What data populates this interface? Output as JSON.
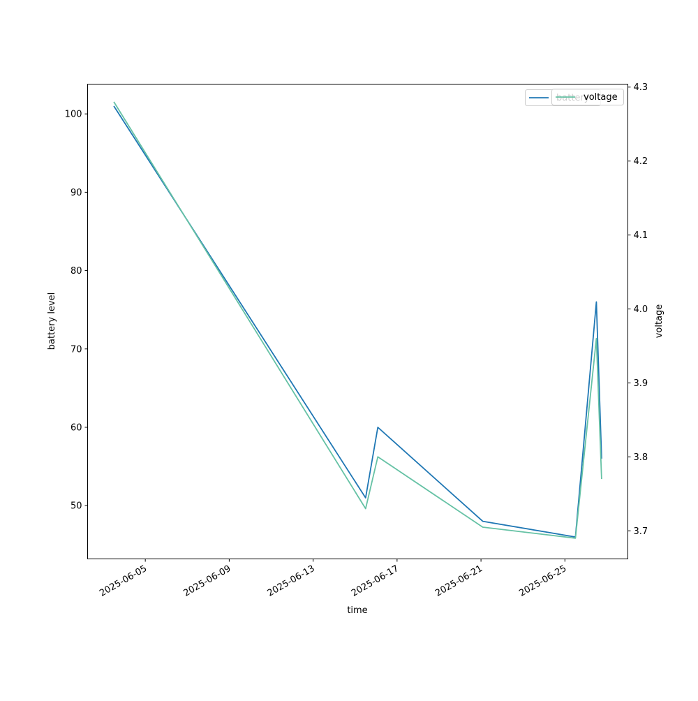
{
  "chart_data": {
    "type": "line",
    "xlabel": "time",
    "ylabel_left": "battery level",
    "ylabel_right": "voltage",
    "x_ticks": [
      "2025-06-05",
      "2025-06-09",
      "2025-06-13",
      "2025-06-17",
      "2025-06-21",
      "2025-06-25"
    ],
    "y_left_ticks": [
      50,
      60,
      70,
      80,
      90,
      100
    ],
    "y_right_ticks": [
      "3.7",
      "3.8",
      "3.9",
      "4.0",
      "4.1",
      "4.2",
      "4.3"
    ],
    "x_range": [
      "2025-06-02T06:00",
      "2025-06-28T00:00"
    ],
    "y_left_range": [
      43.2,
      103.8
    ],
    "y_right_range": [
      3.662,
      4.304
    ],
    "legend_location": "upper right",
    "legend_entries": [
      "battery",
      "voltage"
    ],
    "series": [
      {
        "name": "battery",
        "axis": "left",
        "color": "#1f77b4",
        "x": [
          "2025-06-03T12:00",
          "2025-06-15T12:00",
          "2025-06-16T02:00",
          "2025-06-21T02:00",
          "2025-06-25T12:00",
          "2025-06-26T12:00",
          "2025-06-26T18:00"
        ],
        "y": [
          101,
          51,
          60,
          48,
          46,
          76,
          56
        ]
      },
      {
        "name": "voltage",
        "axis": "right",
        "color": "#66c2a5",
        "x": [
          "2025-06-03T12:00",
          "2025-06-15T12:00",
          "2025-06-16T02:00",
          "2025-06-21T02:00",
          "2025-06-25T12:00",
          "2025-06-26T12:00",
          "2025-06-26T18:00"
        ],
        "y": [
          4.28,
          3.73,
          3.8,
          3.705,
          3.69,
          3.96,
          3.77
        ]
      }
    ]
  }
}
